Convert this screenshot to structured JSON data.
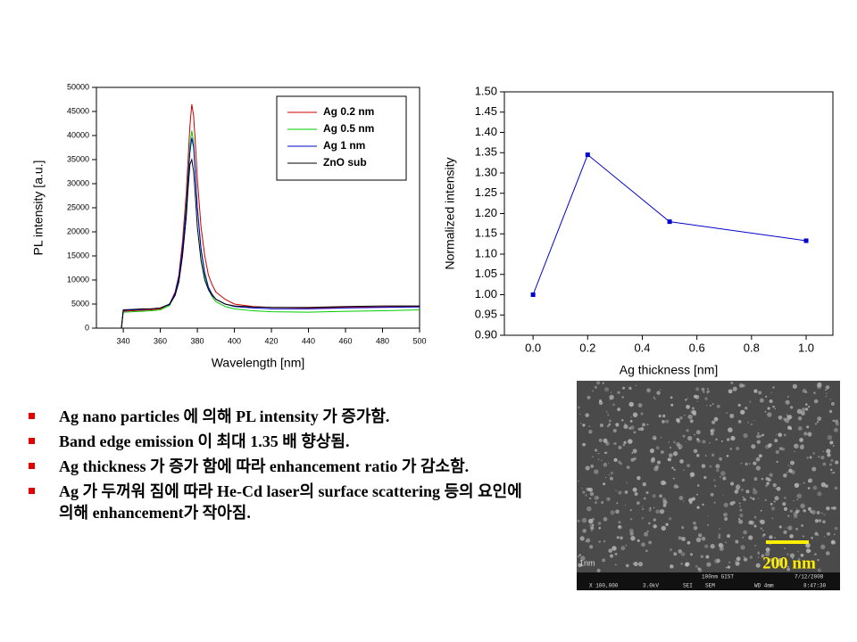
{
  "chart_data": [
    {
      "type": "line",
      "x_label": "Wavelength [nm]",
      "y_label": "PL intensity [a.u.]",
      "x": [
        339,
        340,
        345,
        350,
        355,
        360,
        365,
        368,
        370,
        372,
        374,
        375,
        376,
        377,
        378,
        379,
        380,
        382,
        384,
        386,
        388,
        390,
        395,
        400,
        410,
        420,
        440,
        460,
        480,
        500
      ],
      "series": [
        {
          "name": "Ag 0.2 nm",
          "color": "#cc0000",
          "values": [
            0,
            3500,
            3600,
            3700,
            3800,
            4000,
            5000,
            7500,
            11000,
            18000,
            28000,
            35000,
            42000,
            46500,
            44000,
            38000,
            31000,
            21000,
            15000,
            11000,
            9000,
            7500,
            6000,
            5000,
            4500,
            4300,
            4200,
            4300,
            4400,
            4500
          ]
        },
        {
          "name": "Ag 0.5 nm",
          "color": "#00cc00",
          "values": [
            0,
            3300,
            3400,
            3500,
            3600,
            3800,
            4700,
            7000,
            10000,
            16500,
            26000,
            32000,
            38000,
            41000,
            38500,
            32000,
            25000,
            16000,
            11000,
            8000,
            6500,
            5500,
            4500,
            4000,
            3600,
            3400,
            3300,
            3500,
            3600,
            3800
          ]
        },
        {
          "name": "Ag 1 nm",
          "color": "#0000cc",
          "values": [
            0,
            3700,
            3800,
            3900,
            4000,
            4200,
            5000,
            7200,
            10500,
            16500,
            25000,
            31000,
            36500,
            39500,
            37500,
            31500,
            25000,
            16500,
            11500,
            8500,
            7000,
            6000,
            5000,
            4500,
            4200,
            4000,
            4000,
            4200,
            4300,
            4400
          ]
        },
        {
          "name": "ZnO sub",
          "color": "#000000",
          "values": [
            0,
            3800,
            3900,
            4000,
            4000,
            4200,
            4900,
            6800,
            9500,
            15000,
            23000,
            29000,
            34000,
            35000,
            32500,
            27000,
            21000,
            14000,
            10000,
            8000,
            6800,
            6000,
            5000,
            4600,
            4400,
            4300,
            4300,
            4500,
            4600,
            4600
          ]
        }
      ],
      "xlim": [
        325.5,
        500
      ],
      "xticks": [
        340,
        360,
        380,
        400,
        420,
        440,
        460,
        480,
        500
      ],
      "ylim": [
        0,
        50000
      ],
      "yticks": [
        0,
        5000,
        10000,
        15000,
        20000,
        25000,
        30000,
        35000,
        40000,
        45000,
        50000
      ]
    },
    {
      "type": "line",
      "x_label": "Ag thickness [nm]",
      "y_label": "Normalized intensity",
      "x": [
        0,
        0.2,
        0.5,
        1.0
      ],
      "series": [
        {
          "name": "Normalized intensity",
          "color": "#0000cc",
          "values": [
            1.0,
            1.345,
            1.18,
            1.133
          ]
        }
      ],
      "markers": "square",
      "xlim": [
        -0.105,
        1.098
      ],
      "xticks": [
        {
          "value": 0,
          "label": "0.0"
        },
        0.2,
        0.4,
        0.6,
        0.8,
        {
          "value": 1,
          "label": "1.0"
        }
      ],
      "ylim": [
        0.9,
        1.5
      ],
      "yticks": [
        {
          "value": 0.9,
          "label": "0.90"
        },
        0.95,
        {
          "value": 1,
          "label": "1.00"
        },
        1.05,
        {
          "value": 1.1,
          "label": "1.10"
        },
        1.15,
        {
          "value": 1.2,
          "label": "1.20"
        },
        1.25,
        {
          "value": 1.3,
          "label": "1.30"
        },
        1.35,
        {
          "value": 1.4,
          "label": "1.40"
        },
        1.45,
        {
          "value": 1.5,
          "label": "1.50"
        }
      ]
    }
  ],
  "bullets": [
    "Ag nano particles 에 의해 PL intensity 가 증가함.",
    "Band edge emission 이 최대 1.35 배 향상됨.",
    "Ag thickness 가 증가 함에 따라 enhancement ratio 가 감소함.",
    "Ag 가 두꺼워 짐에 따라 He-Cd laser의 surface scattering 등의 요인에 의해 enhancement가 작아짐."
  ],
  "sem_image": {
    "scale_label": "200 nm",
    "corner_label": "1nm",
    "info_bar": [
      "100nm GIST",
      "7/12/2008",
      "X 100,000",
      "3.0kV",
      "SEI",
      "SEM",
      "WD 4mm",
      "8:47:30"
    ]
  }
}
